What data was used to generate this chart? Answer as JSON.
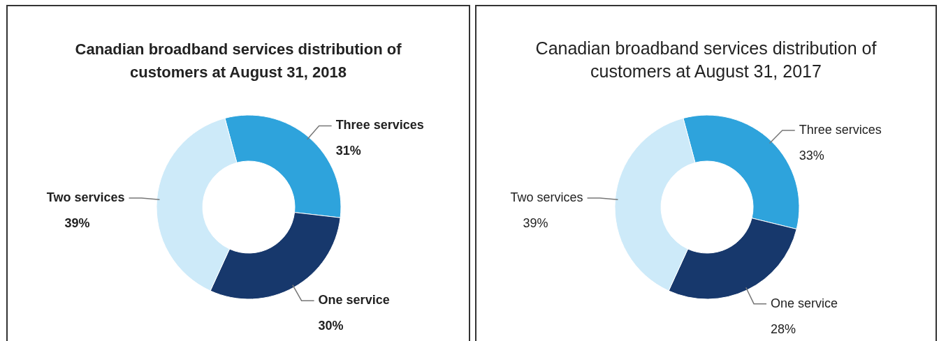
{
  "chart_data": [
    {
      "type": "donut",
      "title": "Canadian broadband services distribution of customers at August 31, 2018",
      "categories": [
        "Three services",
        "One service",
        "Two services"
      ],
      "values": [
        31,
        30,
        39
      ],
      "colors": [
        "#2ea3dc",
        "#17386c",
        "#cdeaf9"
      ],
      "value_labels": [
        "31%",
        "30%",
        "39%"
      ]
    },
    {
      "type": "donut",
      "title": "Canadian broadband services distribution of customers at August 31, 2017",
      "categories": [
        "Three services",
        "One service",
        "Two services"
      ],
      "values": [
        33,
        28,
        39
      ],
      "colors": [
        "#2ea3dc",
        "#17386c",
        "#cdeaf9"
      ],
      "value_labels": [
        "33%",
        "28%",
        "39%"
      ]
    }
  ]
}
